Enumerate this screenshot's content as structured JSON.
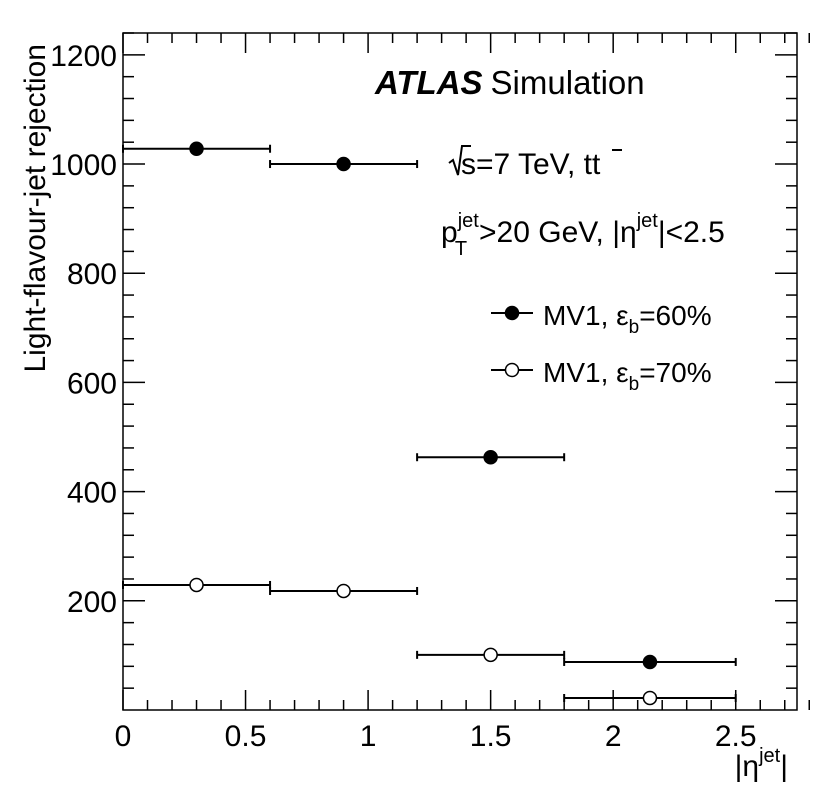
{
  "chart_data": {
    "type": "scatter",
    "title": "",
    "xlabel": "|η",
    "xlabel_sup": "jet",
    "xlabel_close": "|",
    "ylabel": "Light-flavour-jet rejection",
    "xlim": [
      0,
      2.75
    ],
    "ylim": [
      0,
      1240
    ],
    "x_ticks": [
      0,
      0.5,
      1,
      1.5,
      2,
      2.5
    ],
    "x_tick_labels": [
      "0",
      "0.5",
      "1",
      "1.5",
      "2",
      "2.5"
    ],
    "y_ticks": [
      200,
      400,
      600,
      800,
      1000,
      1200
    ],
    "y_tick_labels": [
      "200",
      "400",
      "600",
      "800",
      "1000",
      "1200"
    ],
    "series": [
      {
        "name": "MV1, ε_b=60%",
        "label_main": "MV1, ε",
        "label_sub": "b",
        "label_tail": "=60%",
        "marker": "filled-circle",
        "points": [
          {
            "x": 0.3,
            "xlo": 0.0,
            "xhi": 0.6,
            "y": 1028
          },
          {
            "x": 0.9,
            "xlo": 0.6,
            "xhi": 1.2,
            "y": 1000
          },
          {
            "x": 1.5,
            "xlo": 1.2,
            "xhi": 1.8,
            "y": 463
          },
          {
            "x": 2.15,
            "xlo": 1.8,
            "xhi": 2.5,
            "y": 88
          }
        ]
      },
      {
        "name": "MV1, ε_b=70%",
        "label_main": "MV1, ε",
        "label_sub": "b",
        "label_tail": "=70%",
        "marker": "open-circle",
        "points": [
          {
            "x": 0.3,
            "xlo": 0.0,
            "xhi": 0.6,
            "y": 229
          },
          {
            "x": 0.9,
            "xlo": 0.6,
            "xhi": 1.2,
            "y": 218
          },
          {
            "x": 1.5,
            "xlo": 1.2,
            "xhi": 1.8,
            "y": 101
          },
          {
            "x": 2.15,
            "xlo": 1.8,
            "xhi": 2.5,
            "y": 22
          }
        ]
      }
    ],
    "legend_position": "top-right",
    "annotations": {
      "experiment": "ATLAS",
      "experiment_suffix": "Simulation",
      "energy_prefix": "s=7 TeV, t",
      "energy_tbar": "t",
      "cut_p": "p",
      "cut_p_sup": "jet",
      "cut_p_sub": "T",
      "cut_mid": ">20 GeV, |η",
      "cut_eta_sup": "jet",
      "cut_tail": "|<2.5"
    },
    "colors": {
      "axis": "#000000",
      "marker": "#000000",
      "background": "#ffffff"
    }
  }
}
